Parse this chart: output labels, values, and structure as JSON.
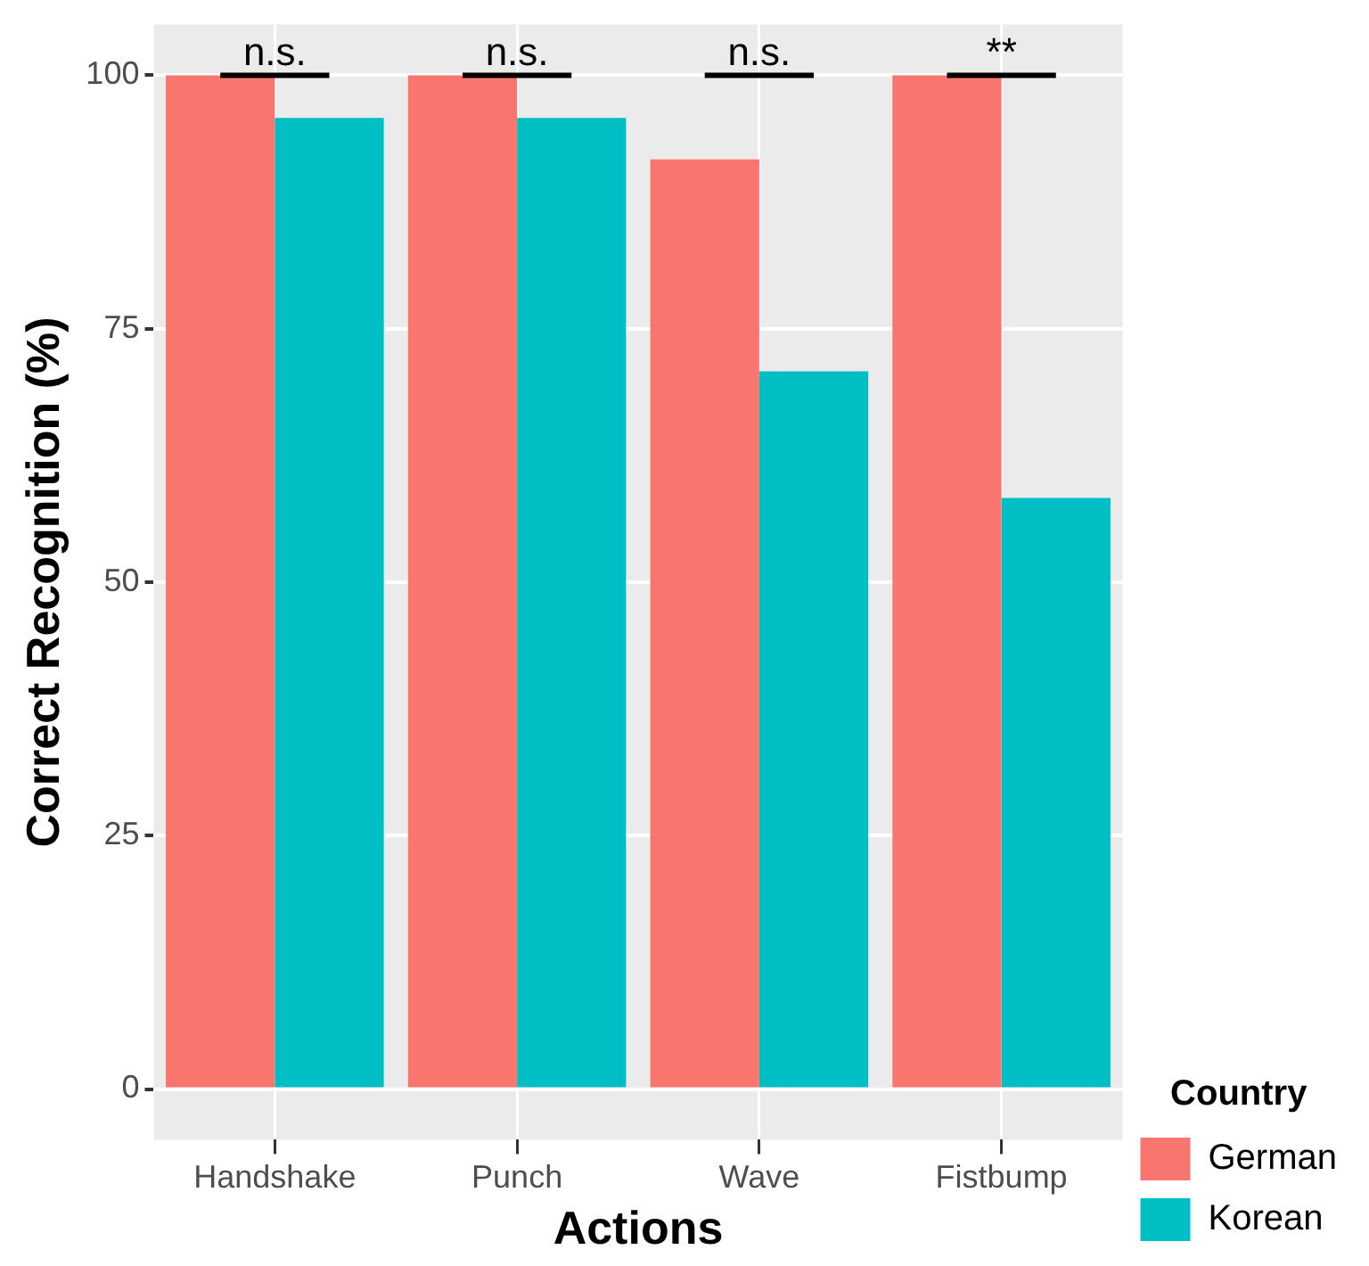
{
  "chart_data": {
    "type": "bar",
    "xlabel": "Actions",
    "ylabel": "Correct Recognition (%)",
    "legend_title": "Country",
    "categories": [
      "Handshake",
      "Punch",
      "Wave",
      "Fistbump"
    ],
    "series": [
      {
        "name": "German",
        "color": "#f8766d",
        "values": [
          100,
          100,
          91.7,
          100
        ]
      },
      {
        "name": "Korean",
        "color": "#00bfc4",
        "values": [
          95.8,
          95.8,
          70.8,
          58.3
        ]
      }
    ],
    "ylim": [
      -5,
      105
    ],
    "yticks": [
      0,
      25,
      50,
      75,
      100
    ],
    "grid": true,
    "legend": "right",
    "annotations": [
      "n.s.",
      "n.s.",
      "n.s.",
      "**"
    ]
  }
}
